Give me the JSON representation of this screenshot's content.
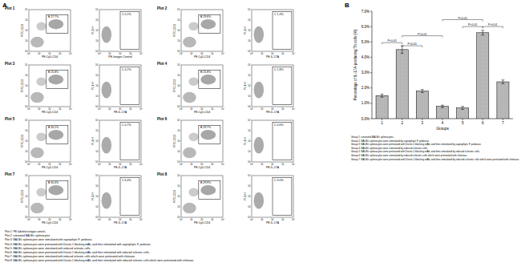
{
  "panel_labels": [
    "A",
    "B"
  ],
  "panel_a": {
    "decade_ticks": [
      "10⁰",
      "10¹",
      "10²",
      "10³",
      "10⁴"
    ],
    "plots": [
      {
        "label": "Plot 1",
        "cd_plot": {
          "y_label": "FITC-CD3",
          "x_label": "PE-Cy5-CD4",
          "gate": "B 27.7%"
        },
        "il17_plot": {
          "y_label": "FL1-H",
          "x_label": "PE-Isotype Control",
          "gate": "C 0.1%"
        }
      },
      {
        "label": "Plot 2",
        "cd_plot": {
          "y_label": "FITC-CD3",
          "x_label": "PE-Cy5-CD4",
          "gate": "B 29.8%"
        },
        "il17_plot": {
          "y_label": "FL1-H",
          "x_label": "PE-IL-17A",
          "gate": "C 1.4%"
        }
      },
      {
        "label": "Plot 3",
        "cd_plot": {
          "y_label": "FITC-CD3",
          "x_label": "PE-Cy5-CD4",
          "gate": "B 25.8%"
        },
        "il17_plot": {
          "y_label": "FL1-H",
          "x_label": "PE-IL-17A",
          "gate": "C 4.2%"
        }
      },
      {
        "label": "Plot 4",
        "cd_plot": {
          "y_label": "FITC-CD3",
          "x_label": "PE-Cy5-CD4",
          "gate": "B 25.8%"
        },
        "il17_plot": {
          "y_label": "FL1-H",
          "x_label": "PE-IL-17A",
          "gate": "C 1.8%"
        }
      },
      {
        "label": "Plot 5",
        "cd_plot": {
          "y_label": "FITC-CD3",
          "x_label": "PE-Cy5-CD4",
          "gate": "B 30.1%"
        },
        "il17_plot": {
          "y_label": "FL1-H",
          "x_label": "PE-IL-17A",
          "gate": "C 0.7%"
        }
      },
      {
        "label": "Plot 6",
        "cd_plot": {
          "y_label": "FITC-CD3",
          "x_label": "PE-Cy5-CD4",
          "gate": "B 29.7%"
        },
        "il17_plot": {
          "y_label": "FL1-H",
          "x_label": "PE-IL-17A",
          "gate": "C 0.6%"
        }
      },
      {
        "label": "Plot 7",
        "cd_plot": {
          "y_label": "FITC-CD3",
          "x_label": "PE-Cy5-CD4",
          "gate": "B 30.3%"
        },
        "il17_plot": {
          "y_label": "FL1-H",
          "x_label": "PE-IL-17A",
          "gate": "C 6.4%"
        }
      },
      {
        "label": "Plot 8",
        "cd_plot": {
          "y_label": "FITC-CD3",
          "x_label": "PE-Cy5-CD4",
          "gate": "B 29.9%"
        },
        "il17_plot": {
          "y_label": "FL1-H",
          "x_label": "PE-IL-17A",
          "gate": "C 3.0%"
        }
      }
    ],
    "captions": [
      "Plot 1: PE-labeled isotype control.",
      "Plot 2: untreated BALB/c splenocytes.",
      "Plot 3: BALB/c splenocytes were stimulated with saprophytic F. pedrosoi.",
      "Plot 4: BALB/c splenocytes were pretreated with Dectin-1 blocking mAb, and then stimulated with saprophytic F. pedrosoi.",
      "Plot 5: BALB/c splenocytes were stimulated with induced sclerotic cells.",
      "Plot 6: BALB/c splenocytes were pretreated with Dectin-1 blocking mAb, and then stimulated with induced sclerotic cells.",
      "Plot 7: BALB/c splenocytes were stimulated with induced sclerotic cells which were pretreated with chitinase.",
      "Plot 8: BALB/c splenocytes were pretreated with Dectin-1 blocking mAb, and then stimulated with induced sclerotic cells which were pretreated with chitinase."
    ]
  },
  "chart_data": {
    "type": "bar",
    "y_label": "Percentage of IL-17A-producing Th cells (%)",
    "x_label": "Groups",
    "categories": [
      "1",
      "2",
      "3",
      "4",
      "5",
      "6",
      "7"
    ],
    "values": [
      1.5,
      4.5,
      1.8,
      0.8,
      0.7,
      5.6,
      2.4
    ],
    "errors": [
      0.1,
      0.25,
      0.1,
      0.08,
      0.1,
      0.15,
      0.12
    ],
    "color": "#d9d9d9",
    "ylim": [
      0,
      7
    ],
    "yticks": [
      {
        "value": 0,
        "label": "0.0%"
      },
      {
        "value": 1,
        "label": "1.0%"
      },
      {
        "value": 2,
        "label": "2.0%"
      },
      {
        "value": 3,
        "label": "3.0%"
      },
      {
        "value": 4,
        "label": "4.0%"
      },
      {
        "value": 5,
        "label": "5.0%"
      },
      {
        "value": 6,
        "label": "6.0%"
      },
      {
        "value": 7,
        "label": "7.0%"
      }
    ],
    "comparisons": [
      {
        "groups": [
          "1",
          "2"
        ],
        "y": 4.95,
        "label": "P<0.01"
      },
      {
        "groups": [
          "2",
          "3"
        ],
        "y": 4.75,
        "label": "P<0.01"
      },
      {
        "groups": [
          "2",
          "4"
        ],
        "y": 5.4,
        "label": "P<0.01"
      },
      {
        "groups": [
          "4",
          "6"
        ],
        "y": 6.45,
        "label": "P<0.01"
      },
      {
        "groups": [
          "5",
          "6"
        ],
        "y": 6.0,
        "label": "P<0.01"
      },
      {
        "groups": [
          "6",
          "7"
        ],
        "y": 6.0,
        "label": "P<0.01"
      }
    ]
  },
  "group_legend": [
    "Group 1: untreated BALB/c splenocytes.",
    "Group 2: BALB/c splenocytes were stimulated by saprophytic F. pedrosoi.",
    "Group 3: BALB/c splenocytes were pretreated with Dectin-1 blocking mAb, and then stimulated by saprophytic F. pedrosoi.",
    "Group 4: BALB/c splenocytes were stimulated by induced sclerotic cells.",
    "Group 5: BALB/c splenocytes were pretreated with Dectin-1 blocking mAb, and then stimulated by induced sclerotic cells.",
    "Group 6: BALB/c splenocytes were stimulated by induced sclerotic cells which were pretreated with chitinase.",
    "Group 7: BALB/c splenocytes were pretreated with Dectin-1 blocking mAb, and then stimulated by induced sclerotic cells which were pretreated with chitinase."
  ]
}
